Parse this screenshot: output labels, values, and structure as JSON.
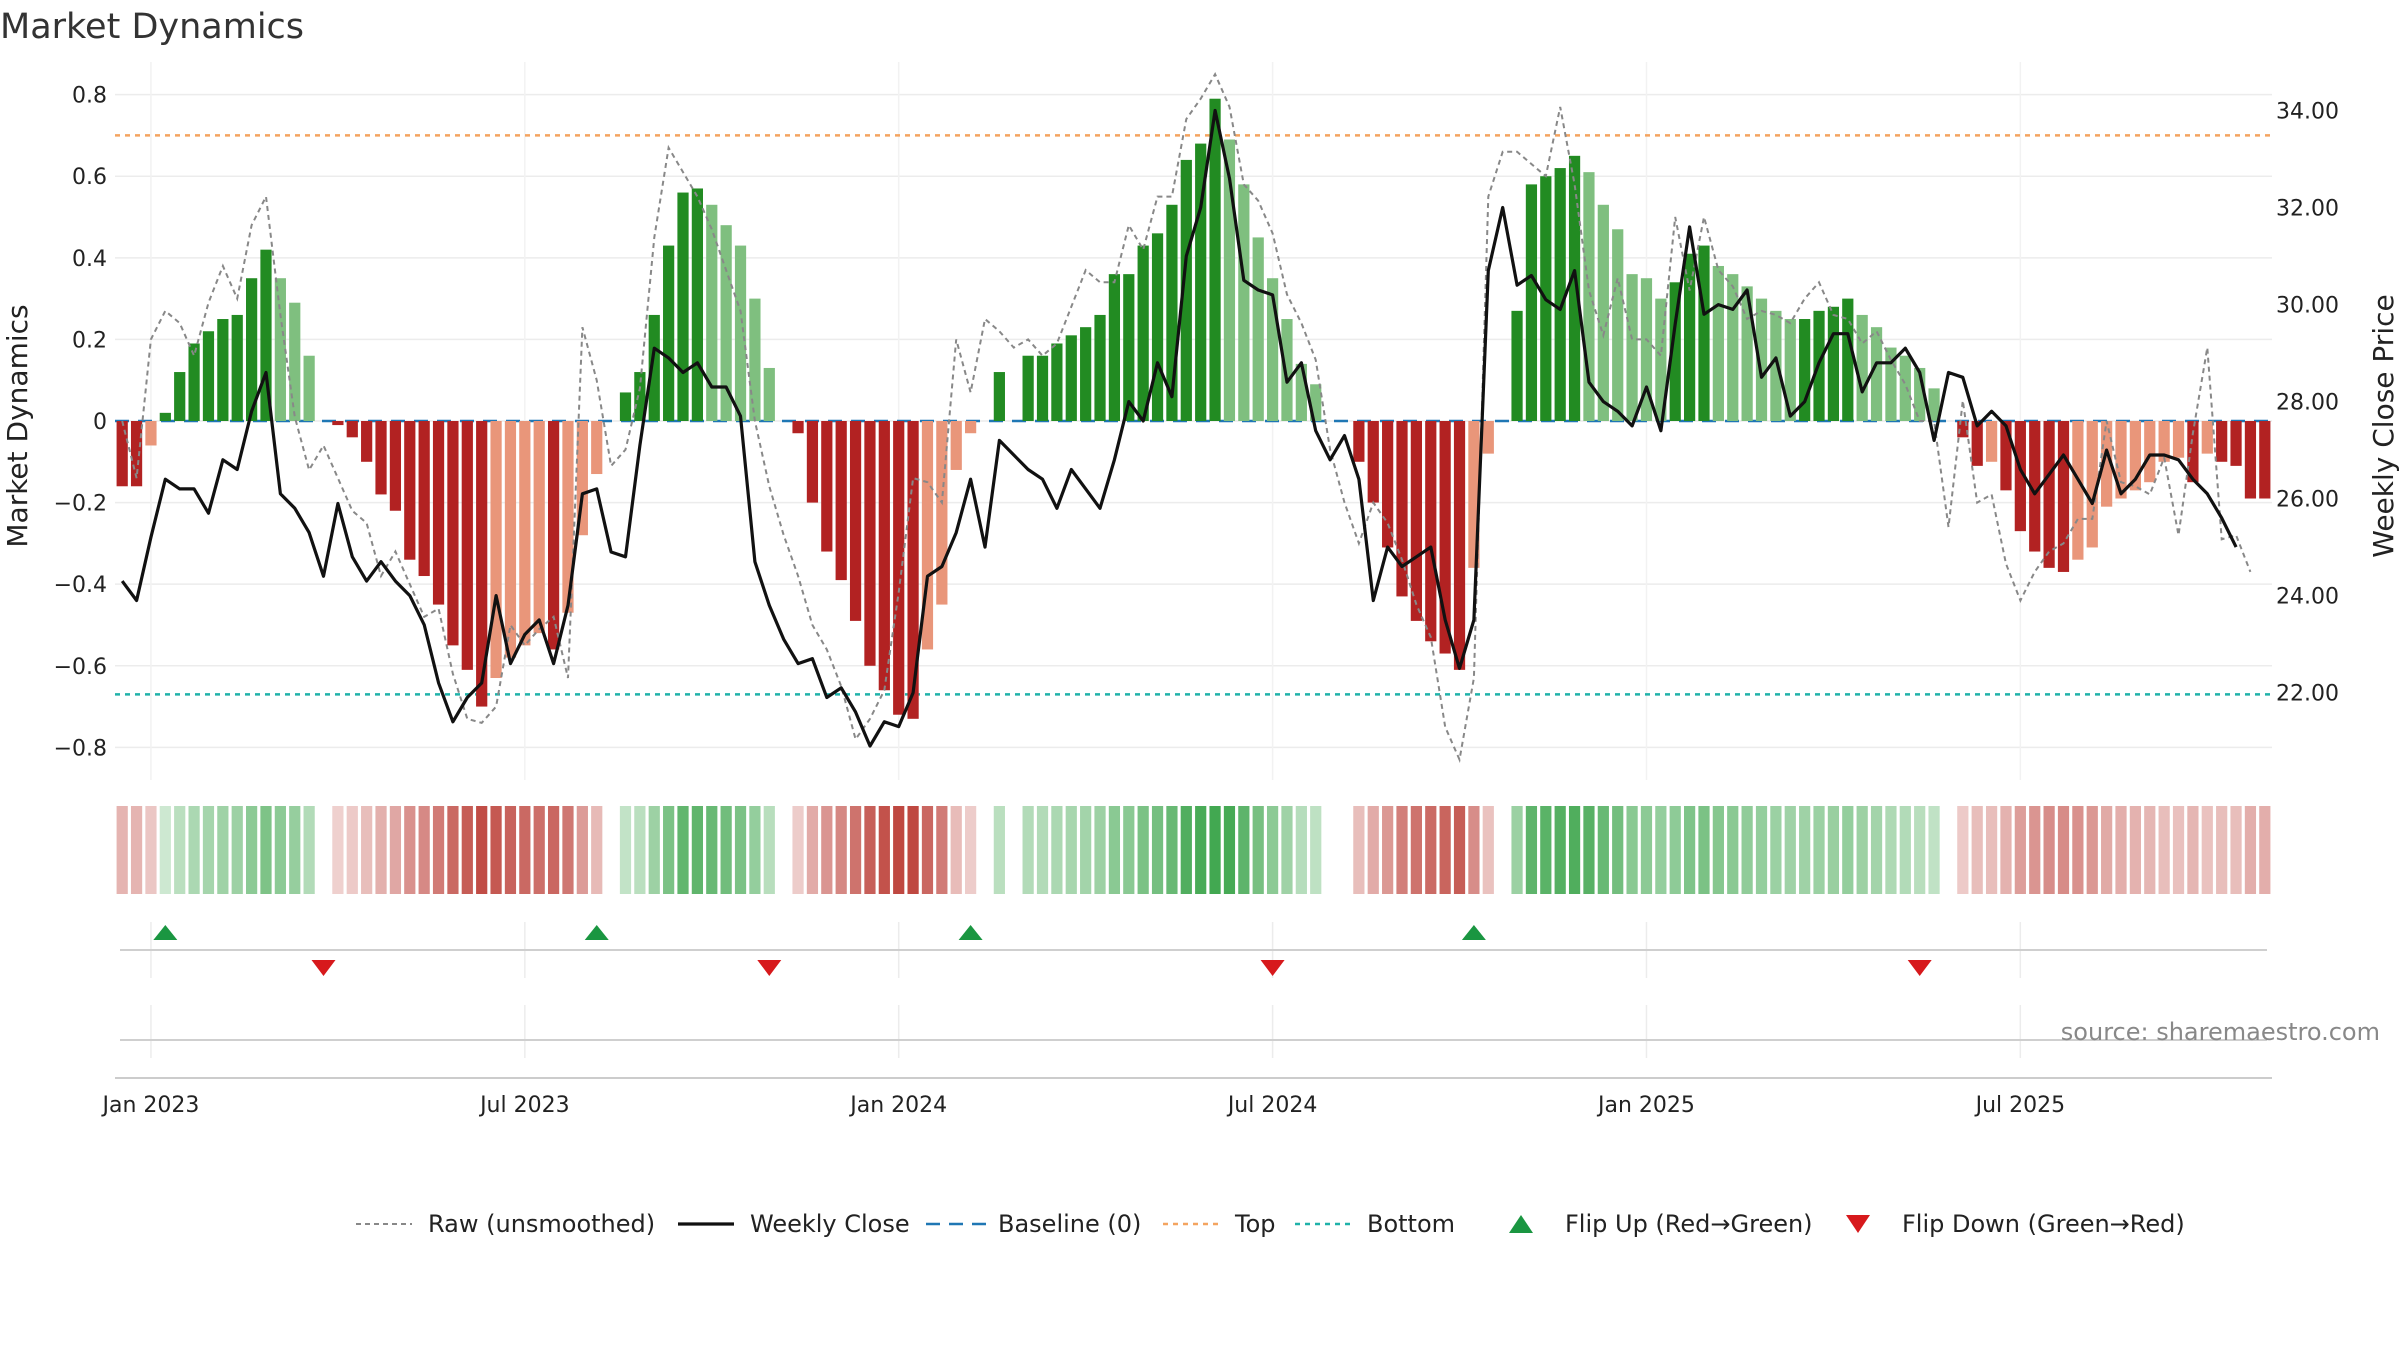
{
  "title": "Market Dynamics",
  "source": "source: sharemaestro.com",
  "colors": {
    "strong_green": "#228b22",
    "light_green": "#7fbf7f",
    "strong_red": "#b22222",
    "light_red": "#e9967a",
    "price": "#111111",
    "raw": "#888888",
    "baseline": "#1f77b4",
    "top": "#f4a460",
    "bottom": "#20b2aa",
    "flip_up": "#1a9641",
    "flip_down": "#d7191c"
  },
  "chart_data": {
    "type": "bar",
    "title": "Market Dynamics",
    "ylabel": "Market Dynamics",
    "y2label": "Weekly Close Price",
    "ylim": [
      -0.88,
      0.88
    ],
    "y2lim": [
      20.2,
      35.0
    ],
    "y_ticks": [
      {
        "value": 0.8,
        "label": "0.8"
      },
      {
        "value": 0.6,
        "label": "0.6"
      },
      {
        "value": 0.4,
        "label": "0.4"
      },
      {
        "value": 0.2,
        "label": "0.2"
      },
      {
        "value": 0,
        "label": "0"
      },
      {
        "value": -0.2,
        "label": "−0.2"
      },
      {
        "value": -0.4,
        "label": "−0.4"
      },
      {
        "value": -0.6,
        "label": "−0.6"
      },
      {
        "value": -0.8,
        "label": "−0.8"
      }
    ],
    "y2_ticks": [
      {
        "value": 34,
        "label": "34.00"
      },
      {
        "value": 32,
        "label": "32.00"
      },
      {
        "value": 30,
        "label": "30.00"
      },
      {
        "value": 28,
        "label": "28.00"
      },
      {
        "value": 26,
        "label": "26.00"
      },
      {
        "value": 24,
        "label": "24.00"
      },
      {
        "value": 22,
        "label": "22.00"
      }
    ],
    "x_ticks": [
      {
        "index": 2,
        "label": "Jan 2023"
      },
      {
        "index": 28,
        "label": "Jul 2023"
      },
      {
        "index": 54,
        "label": "Jan 2024"
      },
      {
        "index": 80,
        "label": "Jul 2024"
      },
      {
        "index": 106,
        "label": "Jan 2025"
      },
      {
        "index": 132,
        "label": "Jul 2025"
      }
    ],
    "top_line": 0.7,
    "bottom_line": -0.67,
    "series": [
      {
        "name": "Market Dynamics",
        "values": [
          -0.16,
          -0.16,
          -0.06,
          0.02,
          0.12,
          0.19,
          0.22,
          0.25,
          0.26,
          0.35,
          0.42,
          0.35,
          0.29,
          0.16,
          0.0,
          -0.01,
          -0.04,
          -0.1,
          -0.18,
          -0.22,
          -0.34,
          -0.38,
          -0.45,
          -0.55,
          -0.61,
          -0.7,
          -0.63,
          -0.58,
          -0.55,
          -0.52,
          -0.56,
          -0.47,
          -0.28,
          -0.13,
          0.0,
          0.07,
          0.12,
          0.26,
          0.43,
          0.56,
          0.57,
          0.53,
          0.48,
          0.43,
          0.3,
          0.13,
          0.0,
          -0.03,
          -0.2,
          -0.32,
          -0.39,
          -0.49,
          -0.6,
          -0.66,
          -0.72,
          -0.73,
          -0.56,
          -0.45,
          -0.12,
          -0.03,
          0.0,
          0.12,
          0.0,
          0.16,
          0.16,
          0.19,
          0.21,
          0.23,
          0.26,
          0.36,
          0.36,
          0.43,
          0.46,
          0.53,
          0.64,
          0.68,
          0.79,
          0.69,
          0.58,
          0.45,
          0.35,
          0.25,
          0.14,
          0.09,
          0.0,
          0.0,
          -0.1,
          -0.2,
          -0.31,
          -0.43,
          -0.49,
          -0.54,
          -0.57,
          -0.61,
          -0.36,
          -0.08,
          0.0,
          0.27,
          0.58,
          0.6,
          0.62,
          0.65,
          0.61,
          0.53,
          0.47,
          0.36,
          0.35,
          0.3,
          0.34,
          0.41,
          0.43,
          0.38,
          0.36,
          0.33,
          0.3,
          0.27,
          0.25,
          0.25,
          0.27,
          0.28,
          0.3,
          0.26,
          0.23,
          0.18,
          0.16,
          0.13,
          0.08,
          0.0,
          -0.04,
          -0.11,
          -0.1,
          -0.17,
          -0.27,
          -0.32,
          -0.36,
          -0.37,
          -0.34,
          -0.31,
          -0.21,
          -0.19,
          -0.17,
          -0.15,
          -0.1,
          -0.09,
          -0.15,
          -0.08,
          -0.1,
          -0.11,
          -0.19,
          -0.19
        ]
      },
      {
        "name": "Raw (unsmoothed)",
        "values": [
          0.0,
          -0.14,
          0.2,
          0.27,
          0.24,
          0.16,
          0.29,
          0.38,
          0.3,
          0.48,
          0.55,
          0.26,
          0.01,
          -0.12,
          -0.06,
          -0.14,
          -0.22,
          -0.25,
          -0.38,
          -0.32,
          -0.4,
          -0.48,
          -0.46,
          -0.62,
          -0.73,
          -0.74,
          -0.7,
          -0.5,
          -0.55,
          -0.51,
          -0.48,
          -0.63,
          0.23,
          0.1,
          -0.11,
          -0.07,
          0.08,
          0.45,
          0.67,
          0.61,
          0.55,
          0.47,
          0.37,
          0.27,
          0.0,
          -0.16,
          -0.28,
          -0.38,
          -0.5,
          -0.56,
          -0.65,
          -0.78,
          -0.73,
          -0.66,
          -0.42,
          -0.14,
          -0.15,
          -0.2,
          0.2,
          0.07,
          0.25,
          0.22,
          0.18,
          0.2,
          0.16,
          0.19,
          0.28,
          0.37,
          0.34,
          0.34,
          0.48,
          0.42,
          0.55,
          0.55,
          0.74,
          0.79,
          0.85,
          0.77,
          0.58,
          0.54,
          0.46,
          0.31,
          0.24,
          0.15,
          -0.07,
          -0.2,
          -0.3,
          -0.2,
          -0.25,
          -0.34,
          -0.45,
          -0.53,
          -0.75,
          -0.83,
          -0.63,
          0.55,
          0.66,
          0.66,
          0.63,
          0.6,
          0.77,
          0.58,
          0.32,
          0.21,
          0.35,
          0.2,
          0.2,
          0.16,
          0.5,
          0.32,
          0.5,
          0.37,
          0.33,
          0.25,
          0.27,
          0.26,
          0.24,
          0.3,
          0.34,
          0.26,
          0.25,
          0.19,
          0.22,
          0.15,
          0.09,
          0.0,
          0.0,
          -0.26,
          0.05,
          -0.2,
          -0.18,
          -0.35,
          -0.44,
          -0.37,
          -0.32,
          -0.3,
          -0.24,
          -0.24,
          0.0,
          -0.15,
          -0.16,
          -0.18,
          -0.09,
          -0.28,
          -0.03,
          0.18,
          -0.29,
          -0.28,
          -0.37
        ]
      },
      {
        "name": "Weekly Close",
        "values": [
          24.3,
          23.9,
          25.2,
          26.4,
          26.2,
          26.2,
          25.7,
          26.8,
          26.6,
          27.8,
          28.6,
          26.1,
          25.8,
          25.3,
          24.4,
          25.9,
          24.8,
          24.3,
          24.7,
          24.3,
          24.0,
          23.4,
          22.2,
          21.4,
          21.9,
          22.2,
          24.0,
          22.6,
          23.2,
          23.5,
          22.6,
          23.8,
          26.1,
          26.2,
          24.9,
          24.8,
          27.1,
          29.1,
          28.9,
          28.6,
          28.8,
          28.3,
          28.3,
          27.7,
          24.7,
          23.8,
          23.1,
          22.6,
          22.7,
          21.9,
          22.1,
          21.6,
          20.9,
          21.4,
          21.3,
          22.0,
          24.4,
          24.6,
          25.3,
          26.4,
          25.0,
          27.2,
          26.9,
          26.6,
          26.4,
          25.8,
          26.6,
          26.2,
          25.8,
          26.8,
          28.0,
          27.6,
          28.8,
          28.1,
          31.0,
          32.0,
          34.0,
          32.6,
          30.5,
          30.3,
          30.2,
          28.4,
          28.8,
          27.4,
          26.8,
          27.3,
          26.4,
          23.9,
          25.0,
          24.6,
          24.8,
          25.0,
          23.5,
          22.5,
          23.5,
          30.7,
          32.0,
          30.4,
          30.6,
          30.1,
          29.9,
          30.7,
          28.4,
          28.0,
          27.8,
          27.5,
          28.3,
          27.4,
          29.6,
          31.6,
          29.8,
          30.0,
          29.9,
          30.3,
          28.5,
          28.9,
          27.7,
          28.0,
          28.8,
          29.4,
          29.4,
          28.2,
          28.8,
          28.8,
          29.1,
          28.6,
          27.2,
          28.6,
          28.5,
          27.5,
          27.8,
          27.5,
          26.6,
          26.1,
          26.5,
          26.9,
          26.4,
          25.9,
          27.0,
          26.1,
          26.4,
          26.9,
          26.9,
          26.8,
          26.4,
          26.1,
          25.6,
          25.0
        ]
      }
    ],
    "flip_up_indices": [
      3,
      33,
      59,
      94
    ],
    "flip_down_indices": [
      14,
      45,
      80,
      125
    ]
  },
  "legend": [
    {
      "key": "raw",
      "label": "Raw (unsmoothed)"
    },
    {
      "key": "close",
      "label": "Weekly Close"
    },
    {
      "key": "baseline",
      "label": "Baseline (0)"
    },
    {
      "key": "top",
      "label": "Top"
    },
    {
      "key": "bottom",
      "label": "Bottom"
    },
    {
      "key": "flip_up",
      "label": "Flip Up (Red→Green)"
    },
    {
      "key": "flip_down",
      "label": "Flip Down (Green→Red)"
    }
  ]
}
